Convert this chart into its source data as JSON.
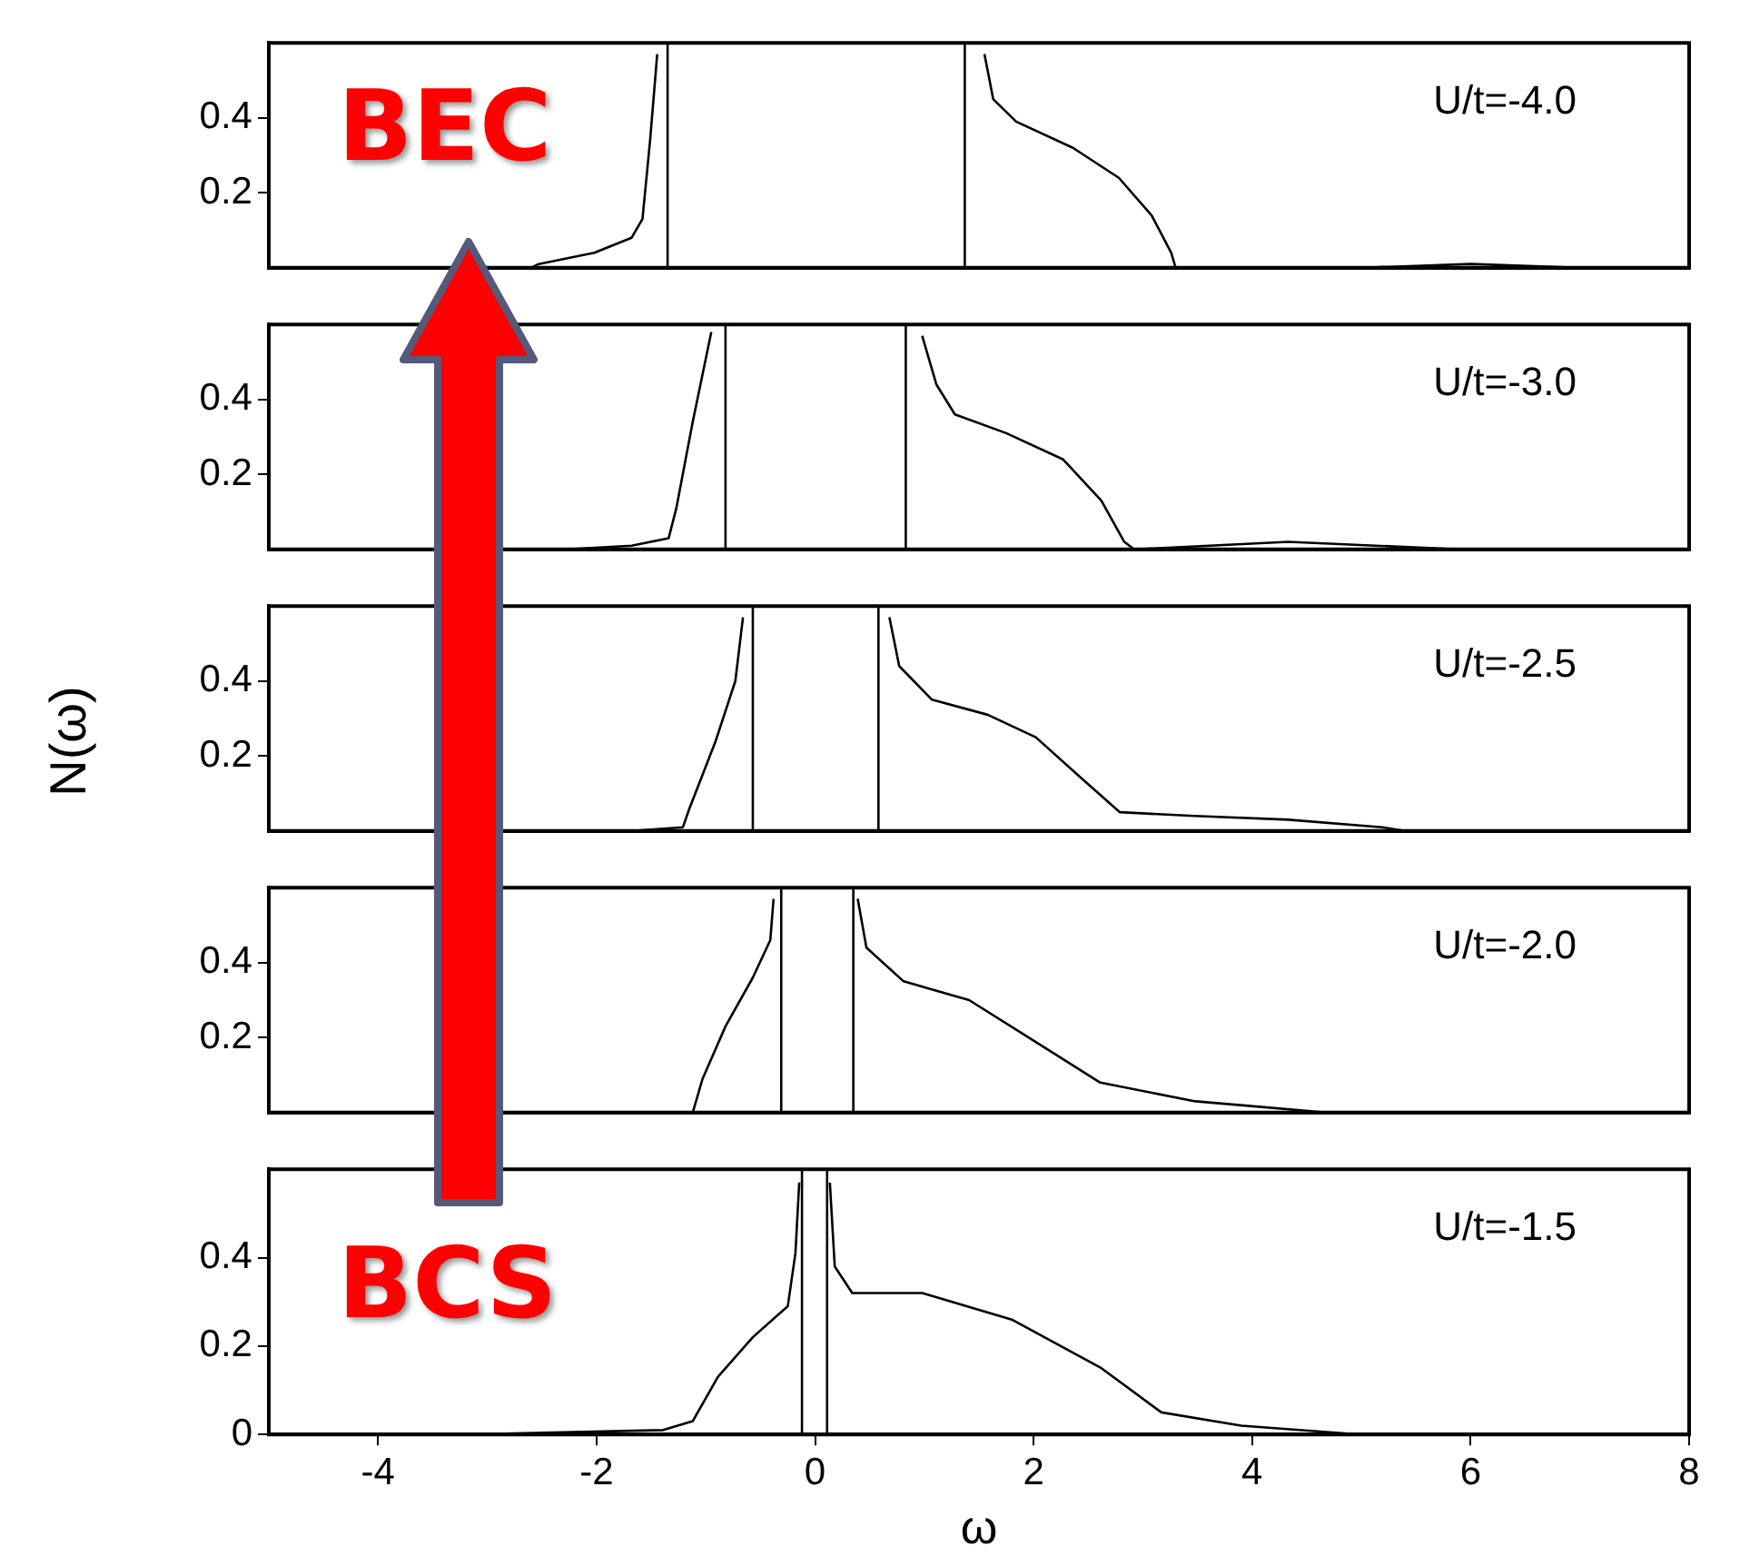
{
  "chart_data": [
    {
      "type": "line",
      "color": "#000000",
      "xlim": [
        -5,
        8
      ],
      "xticks": [
        -4,
        -2,
        0,
        2,
        4,
        6,
        8
      ],
      "ylim": [
        0,
        0.6
      ],
      "yticks": [
        0.2,
        0.4
      ],
      "tick_labels": "y",
      "grid": false,
      "legend": false,
      "annotations": [
        "U/t=-4.0",
        "BEC"
      ],
      "ref_lines": [
        {
          "axis": "x",
          "value": -1.35
        },
        {
          "axis": "x",
          "value": 1.37
        }
      ],
      "x": [
        -2.6,
        -2.53,
        -2.02,
        -1.68,
        -1.58,
        -1.51,
        -1.445,
        0,
        1.55,
        1.63,
        1.84,
        2.36,
        2.78,
        3.08,
        3.26,
        3.3,
        5,
        6,
        7
      ],
      "values": [
        0,
        0.01,
        0.04,
        0.08,
        0.13,
        0.34,
        0.57,
        null,
        0.57,
        0.45,
        0.39,
        0.32,
        0.24,
        0.14,
        0.04,
        0,
        0,
        0.01,
        0
      ]
    },
    {
      "type": "line",
      "color": "#000000",
      "xlim": [
        -5,
        8
      ],
      "xticks": [
        -4,
        -2,
        0,
        2,
        4,
        6,
        8
      ],
      "ylim": [
        0,
        0.6
      ],
      "yticks": [
        0.2,
        0.4
      ],
      "tick_labels": "y",
      "grid": false,
      "legend": false,
      "annotations": [
        "U/t=-3.0"
      ],
      "ref_lines": [
        {
          "axis": "x",
          "value": -0.82
        },
        {
          "axis": "x",
          "value": 0.83
        }
      ],
      "x": [
        -2.28,
        -1.68,
        -1.34,
        -1.27,
        -1.12,
        -0.95,
        0,
        0.98,
        1.11,
        1.28,
        1.75,
        2.27,
        2.62,
        2.83,
        2.92,
        4.33,
        5.9
      ],
      "values": [
        0,
        0.01,
        0.03,
        0.11,
        0.34,
        0.58,
        null,
        0.57,
        0.44,
        0.36,
        0.31,
        0.24,
        0.13,
        0.02,
        0,
        0.02,
        0
      ]
    },
    {
      "type": "line",
      "color": "#000000",
      "xlim": [
        -5,
        8
      ],
      "xticks": [
        -4,
        -2,
        0,
        2,
        4,
        6,
        8
      ],
      "ylim": [
        0,
        0.6
      ],
      "yticks": [
        0.2,
        0.4
      ],
      "tick_labels": "y",
      "grid": false,
      "legend": false,
      "ylabel": "N(ω)",
      "annotations": [
        "U/t=-2.5"
      ],
      "ref_lines": [
        {
          "axis": "x",
          "value": -0.57
        },
        {
          "axis": "x",
          "value": 0.58
        }
      ],
      "x": [
        -1.68,
        -1.21,
        -1.15,
        -0.91,
        -0.73,
        -0.66,
        0,
        0.68,
        0.77,
        1.07,
        1.58,
        2.02,
        2.44,
        2.79,
        3.47,
        4.33,
        5.19,
        5.4
      ],
      "values": [
        0,
        0.01,
        0.06,
        0.24,
        0.4,
        0.57,
        null,
        0.57,
        0.44,
        0.35,
        0.31,
        0.25,
        0.14,
        0.05,
        0.04,
        0.03,
        0.01,
        0
      ]
    },
    {
      "type": "line",
      "color": "#000000",
      "xlim": [
        -5,
        8
      ],
      "xticks": [
        -4,
        -2,
        0,
        2,
        4,
        6,
        8
      ],
      "ylim": [
        0,
        0.6
      ],
      "yticks": [
        0.2,
        0.4
      ],
      "tick_labels": "y",
      "grid": false,
      "legend": false,
      "annotations": [
        "U/t=-2.0"
      ],
      "ref_lines": [
        {
          "axis": "x",
          "value": -0.31
        },
        {
          "axis": "x",
          "value": 0.35
        }
      ],
      "x": [
        -2.45,
        -1.12,
        -1.03,
        -0.82,
        -0.57,
        -0.41,
        -0.38,
        0,
        0.39,
        0.47,
        0.81,
        1.41,
        2.01,
        2.61,
        3.48,
        4.68
      ],
      "values": [
        0,
        0,
        0.09,
        0.23,
        0.36,
        0.46,
        0.57,
        null,
        0.57,
        0.44,
        0.35,
        0.3,
        0.19,
        0.08,
        0.03,
        0
      ]
    },
    {
      "type": "line",
      "color": "#000000",
      "xlim": [
        -5,
        8
      ],
      "xticks": [
        -4,
        -2,
        0,
        2,
        4,
        6,
        8
      ],
      "ylim": [
        0,
        0.6
      ],
      "yticks": [
        0,
        0.2,
        0.4
      ],
      "grid": false,
      "legend": false,
      "xlabel": "ω",
      "annotations": [
        "U/t=-1.5",
        "BCS"
      ],
      "ref_lines": [
        {
          "axis": "x",
          "value": -0.12
        },
        {
          "axis": "x",
          "value": 0.11
        }
      ],
      "x": [
        -3.22,
        -1.39,
        -1.12,
        -0.89,
        -0.57,
        -0.25,
        -0.18,
        -0.145,
        0,
        0.135,
        0.18,
        0.34,
        0.98,
        1.8,
        2.62,
        3.17,
        3.9,
        4.99
      ],
      "values": [
        0,
        0.01,
        0.03,
        0.13,
        0.22,
        0.29,
        0.41,
        0.57,
        null,
        0.57,
        0.38,
        0.32,
        0.32,
        0.26,
        0.15,
        0.05,
        0.02,
        0
      ]
    }
  ]
}
